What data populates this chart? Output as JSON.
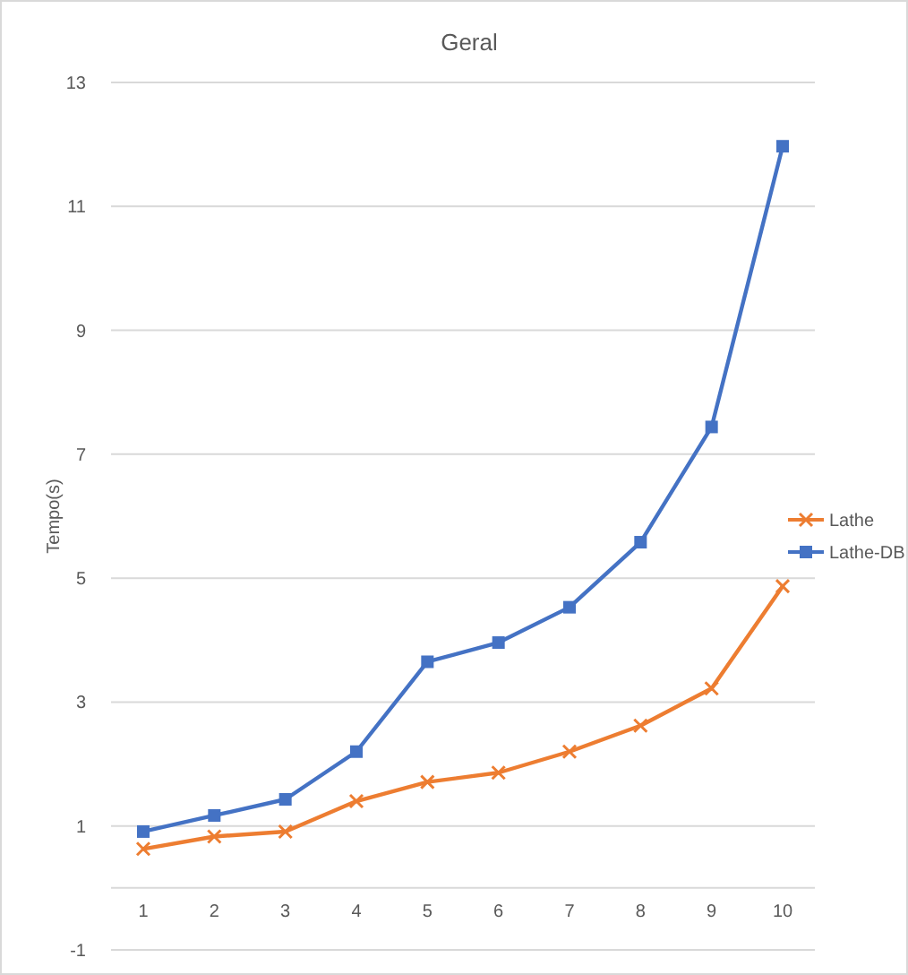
{
  "chart_data": {
    "type": "line",
    "title": "Geral",
    "ylabel": "Tempo(s)",
    "categories": [
      "1",
      "2",
      "3",
      "4",
      "5",
      "6",
      "7",
      "8",
      "9",
      "10"
    ],
    "series": [
      {
        "name": "Lathe",
        "color": "#ed7d31",
        "marker": "cross",
        "values": [
          0.63,
          0.83,
          0.91,
          1.4,
          1.71,
          1.86,
          2.2,
          2.62,
          3.22,
          4.87
        ]
      },
      {
        "name": "Lathe-DB",
        "color": "#4472c4",
        "marker": "square",
        "values": [
          0.91,
          1.17,
          1.43,
          2.2,
          3.65,
          3.96,
          4.53,
          5.58,
          7.44,
          11.97
        ]
      }
    ],
    "ylim": [
      -1,
      13
    ],
    "yticks": [
      -1,
      1,
      3,
      5,
      7,
      9,
      11,
      13
    ],
    "grid": "y",
    "legend": "right"
  }
}
